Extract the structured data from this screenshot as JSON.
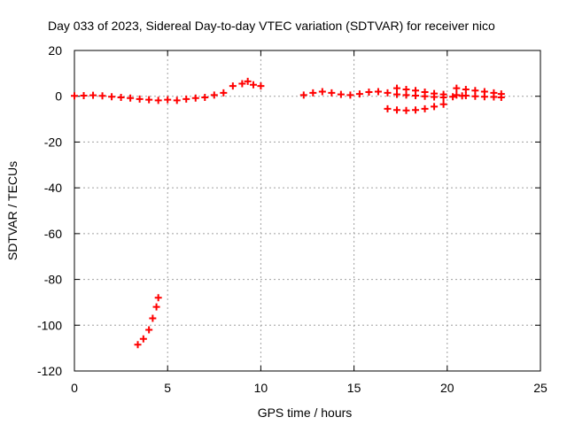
{
  "chart_data": {
    "type": "scatter",
    "title": "Day 033 of 2023, Sidereal Day-to-day VTEC variation (SDTVAR) for receiver nico",
    "xlabel": "GPS time / hours",
    "ylabel": "SDTVAR / TECUs",
    "xlim": [
      0,
      25
    ],
    "ylim": [
      -120,
      20
    ],
    "xticks": [
      0,
      5,
      10,
      15,
      20,
      25
    ],
    "yticks": [
      -120,
      -100,
      -80,
      -60,
      -40,
      -20,
      0,
      20
    ],
    "grid": true,
    "marker": "plus",
    "color": "#ff0000",
    "series": [
      {
        "points": [
          [
            0.0,
            0.2
          ],
          [
            0.5,
            0.3
          ],
          [
            1.0,
            0.4
          ],
          [
            1.5,
            0.2
          ],
          [
            2.0,
            -0.2
          ],
          [
            2.5,
            -0.5
          ],
          [
            3.0,
            -0.8
          ],
          [
            3.5,
            -1.2
          ],
          [
            4.0,
            -1.5
          ],
          [
            4.5,
            -1.8
          ],
          [
            5.0,
            -1.5
          ],
          [
            5.5,
            -1.8
          ],
          [
            6.0,
            -1.2
          ],
          [
            6.5,
            -0.8
          ],
          [
            7.0,
            -0.5
          ],
          [
            7.5,
            0.5
          ],
          [
            8.0,
            1.5
          ],
          [
            8.5,
            4.5
          ],
          [
            9.0,
            5.5
          ],
          [
            9.3,
            6.5
          ],
          [
            9.6,
            5.0
          ],
          [
            10.0,
            4.5
          ],
          [
            12.3,
            0.5
          ],
          [
            12.8,
            1.5
          ],
          [
            13.3,
            2.0
          ],
          [
            13.8,
            1.5
          ],
          [
            14.3,
            0.8
          ],
          [
            14.8,
            0.5
          ],
          [
            15.3,
            1.0
          ],
          [
            15.8,
            1.8
          ],
          [
            16.3,
            2.0
          ],
          [
            16.8,
            1.5
          ],
          [
            17.3,
            0.8
          ],
          [
            17.8,
            0.5
          ],
          [
            18.3,
            0.3
          ],
          [
            18.8,
            0.0
          ],
          [
            19.3,
            -0.3
          ],
          [
            19.8,
            -0.5
          ],
          [
            20.3,
            -0.2
          ],
          [
            20.8,
            0.2
          ],
          [
            17.3,
            3.5
          ],
          [
            17.8,
            3.0
          ],
          [
            18.3,
            2.5
          ],
          [
            18.8,
            1.8
          ],
          [
            19.3,
            1.2
          ],
          [
            19.8,
            0.8
          ],
          [
            16.8,
            -5.5
          ],
          [
            17.3,
            -6.0
          ],
          [
            17.8,
            -6.2
          ],
          [
            18.3,
            -6.0
          ],
          [
            18.8,
            -5.5
          ],
          [
            19.3,
            -4.5
          ],
          [
            19.8,
            -3.5
          ],
          [
            20.5,
            3.5
          ],
          [
            21.0,
            3.0
          ],
          [
            21.5,
            2.5
          ],
          [
            22.0,
            2.0
          ],
          [
            22.5,
            1.5
          ],
          [
            22.9,
            1.0
          ],
          [
            20.5,
            0.5
          ],
          [
            21.0,
            0.3
          ],
          [
            21.5,
            0.0
          ],
          [
            22.0,
            -0.2
          ],
          [
            22.5,
            -0.3
          ],
          [
            22.9,
            -0.5
          ],
          [
            3.4,
            -108.5
          ],
          [
            3.7,
            -106
          ],
          [
            4.0,
            -102
          ],
          [
            4.2,
            -97
          ],
          [
            4.4,
            -92
          ],
          [
            4.5,
            -88
          ]
        ]
      }
    ]
  }
}
